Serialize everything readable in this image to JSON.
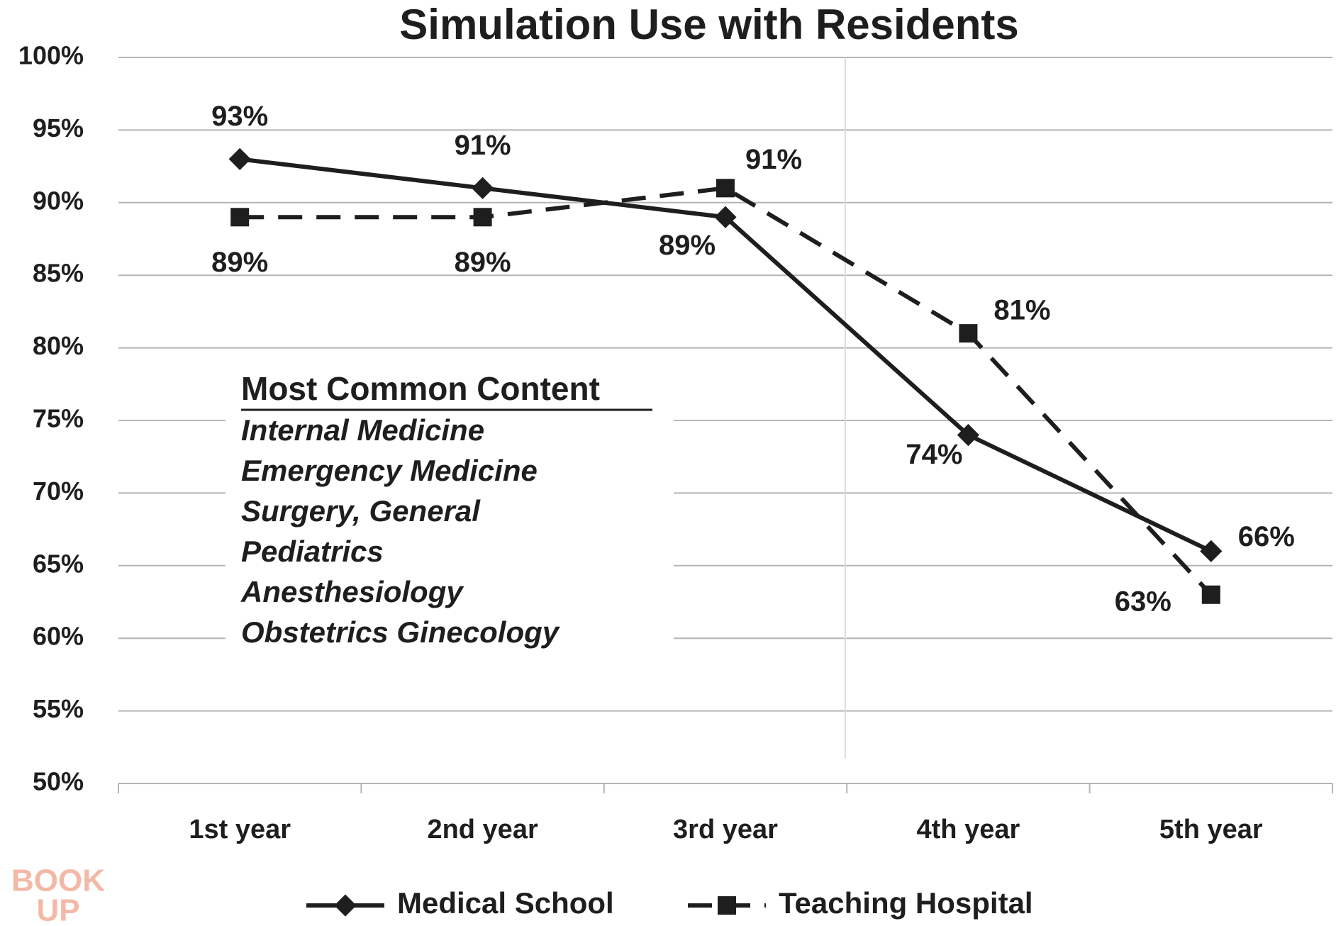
{
  "chart_data": {
    "type": "line",
    "title": "Simulation Use with Residents",
    "categories": [
      "1st year",
      "2nd year",
      "3rd year",
      "4th year",
      "5th year"
    ],
    "series": [
      {
        "name": "Medical School",
        "color": "#1e1e1e",
        "marker": "diamond",
        "line_style": "solid",
        "values": [
          93,
          91,
          89,
          74,
          66
        ],
        "value_labels": [
          "93%",
          "91%",
          "89%",
          "74%",
          "66%"
        ]
      },
      {
        "name": "Teaching Hospital",
        "color": "#1e1e1e",
        "marker": "square",
        "line_style": "dashed",
        "values": [
          89,
          89,
          91,
          81,
          63
        ],
        "value_labels": [
          "89%",
          "89%",
          "91%",
          "81%",
          "63%"
        ]
      }
    ],
    "ylim": [
      50,
      100
    ],
    "yticks": [
      {
        "value": 50,
        "label": "50%"
      },
      {
        "value": 55,
        "label": "55%"
      },
      {
        "value": 60,
        "label": "60%"
      },
      {
        "value": 65,
        "label": "65%"
      },
      {
        "value": 70,
        "label": "70%"
      },
      {
        "value": 75,
        "label": "75%"
      },
      {
        "value": 80,
        "label": "80%"
      },
      {
        "value": 85,
        "label": "85%"
      },
      {
        "value": 90,
        "label": "90%"
      },
      {
        "value": 95,
        "label": "95%"
      },
      {
        "value": 100,
        "label": "100%"
      }
    ],
    "grid": true,
    "legend": "bottom",
    "annotation": {
      "title": "Most Common Content",
      "items": [
        "Internal Medicine",
        "Emergency Medicine",
        "Surgery, General",
        "Pediatrics",
        "Anesthesiology",
        "Obstetrics Ginecology"
      ]
    },
    "watermark": [
      "BOOK",
      "UP"
    ]
  }
}
